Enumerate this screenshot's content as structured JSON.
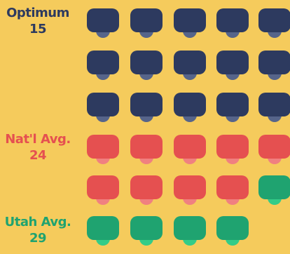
{
  "groups": {
    "optimum": {
      "name": "Optimum",
      "value": "15",
      "color": "#2d3a5f",
      "seat_color": "#56648a"
    },
    "natl": {
      "name": "Nat'l Avg.",
      "value": "24",
      "color": "#e55050",
      "seat_color": "#f08080"
    },
    "utah": {
      "name": "Utah Avg.",
      "value": "29",
      "color": "#1fa370",
      "seat_color": "#33cc88"
    }
  },
  "desks": {
    "optimum_count": 15,
    "natl_count": 9,
    "utah_count": 5
  }
}
